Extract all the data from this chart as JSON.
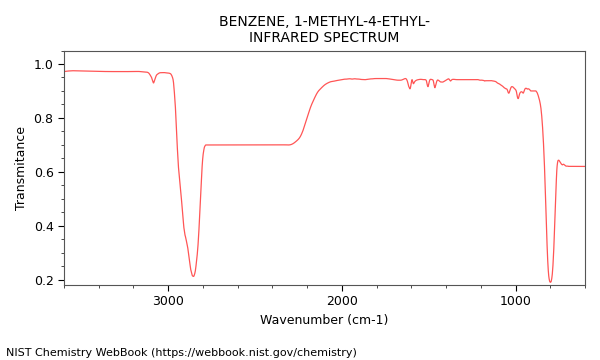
{
  "title_line1": "BENZENE, 1-METHYL-4-ETHYL-",
  "title_line2": "INFRARED SPECTRUM",
  "xlabel": "Wavenumber (cm-1)",
  "ylabel": "Transmitance",
  "footnote": "NIST Chemistry WebBook (https://webbook.nist.gov/chemistry)",
  "xmin": 600,
  "xmax": 3600,
  "ymin": 0.18,
  "ymax": 1.05,
  "line_color": "#ff5555",
  "bg_color": "#ffffff",
  "axes_bg_color": "#ffffff",
  "title_fontsize": 10,
  "axis_fontsize": 9,
  "footnote_fontsize": 8,
  "keypoints": [
    [
      3600,
      0.972
    ],
    [
      3550,
      0.975
    ],
    [
      3500,
      0.975
    ],
    [
      3450,
      0.974
    ],
    [
      3400,
      0.973
    ],
    [
      3350,
      0.972
    ],
    [
      3300,
      0.972
    ],
    [
      3250,
      0.972
    ],
    [
      3200,
      0.972
    ],
    [
      3160,
      0.972
    ],
    [
      3130,
      0.97
    ],
    [
      3110,
      0.965
    ],
    [
      3100,
      0.955
    ],
    [
      3090,
      0.94
    ],
    [
      3085,
      0.93
    ],
    [
      3080,
      0.935
    ],
    [
      3075,
      0.945
    ],
    [
      3070,
      0.955
    ],
    [
      3060,
      0.963
    ],
    [
      3050,
      0.967
    ],
    [
      3040,
      0.968
    ],
    [
      3030,
      0.968
    ],
    [
      3020,
      0.968
    ],
    [
      3010,
      0.967
    ],
    [
      3000,
      0.966
    ],
    [
      2995,
      0.966
    ],
    [
      2990,
      0.965
    ],
    [
      2985,
      0.963
    ],
    [
      2980,
      0.958
    ],
    [
      2975,
      0.95
    ],
    [
      2970,
      0.935
    ],
    [
      2965,
      0.9
    ],
    [
      2960,
      0.855
    ],
    [
      2955,
      0.8
    ],
    [
      2950,
      0.73
    ],
    [
      2945,
      0.66
    ],
    [
      2942,
      0.63
    ],
    [
      2940,
      0.61
    ],
    [
      2938,
      0.595
    ],
    [
      2936,
      0.58
    ],
    [
      2933,
      0.56
    ],
    [
      2930,
      0.54
    ],
    [
      2927,
      0.52
    ],
    [
      2924,
      0.5
    ],
    [
      2921,
      0.48
    ],
    [
      2918,
      0.46
    ],
    [
      2915,
      0.435
    ],
    [
      2912,
      0.41
    ],
    [
      2909,
      0.39
    ],
    [
      2906,
      0.38
    ],
    [
      2903,
      0.365
    ],
    [
      2900,
      0.36
    ],
    [
      2897,
      0.35
    ],
    [
      2894,
      0.34
    ],
    [
      2891,
      0.33
    ],
    [
      2888,
      0.32
    ],
    [
      2885,
      0.31
    ],
    [
      2882,
      0.295
    ],
    [
      2879,
      0.28
    ],
    [
      2876,
      0.265
    ],
    [
      2873,
      0.25
    ],
    [
      2870,
      0.237
    ],
    [
      2867,
      0.228
    ],
    [
      2864,
      0.222
    ],
    [
      2861,
      0.215
    ],
    [
      2858,
      0.213
    ],
    [
      2855,
      0.212
    ],
    [
      2852,
      0.213
    ],
    [
      2849,
      0.218
    ],
    [
      2846,
      0.225
    ],
    [
      2843,
      0.235
    ],
    [
      2840,
      0.25
    ],
    [
      2837,
      0.268
    ],
    [
      2834,
      0.285
    ],
    [
      2831,
      0.305
    ],
    [
      2828,
      0.33
    ],
    [
      2825,
      0.36
    ],
    [
      2822,
      0.395
    ],
    [
      2819,
      0.43
    ],
    [
      2816,
      0.47
    ],
    [
      2813,
      0.51
    ],
    [
      2810,
      0.55
    ],
    [
      2807,
      0.59
    ],
    [
      2804,
      0.625
    ],
    [
      2801,
      0.65
    ],
    [
      2798,
      0.668
    ],
    [
      2795,
      0.68
    ],
    [
      2792,
      0.69
    ],
    [
      2789,
      0.695
    ],
    [
      2786,
      0.698
    ],
    [
      2783,
      0.7
    ],
    [
      2780,
      0.7
    ],
    [
      2770,
      0.7
    ],
    [
      2760,
      0.7
    ],
    [
      2750,
      0.7
    ],
    [
      2740,
      0.7
    ],
    [
      2730,
      0.7
    ],
    [
      2700,
      0.7
    ],
    [
      2680,
      0.7
    ],
    [
      2660,
      0.7
    ],
    [
      2640,
      0.7
    ],
    [
      2620,
      0.7
    ],
    [
      2600,
      0.7
    ],
    [
      2580,
      0.7
    ],
    [
      2560,
      0.7
    ],
    [
      2540,
      0.7
    ],
    [
      2520,
      0.7
    ],
    [
      2500,
      0.7
    ],
    [
      2480,
      0.7
    ],
    [
      2460,
      0.7
    ],
    [
      2440,
      0.7
    ],
    [
      2420,
      0.7
    ],
    [
      2400,
      0.7
    ],
    [
      2380,
      0.7
    ],
    [
      2360,
      0.7
    ],
    [
      2340,
      0.7
    ],
    [
      2320,
      0.7
    ],
    [
      2300,
      0.7
    ],
    [
      2280,
      0.705
    ],
    [
      2260,
      0.715
    ],
    [
      2240,
      0.73
    ],
    [
      2220,
      0.76
    ],
    [
      2200,
      0.8
    ],
    [
      2180,
      0.84
    ],
    [
      2160,
      0.87
    ],
    [
      2140,
      0.895
    ],
    [
      2120,
      0.91
    ],
    [
      2100,
      0.922
    ],
    [
      2080,
      0.93
    ],
    [
      2060,
      0.935
    ],
    [
      2040,
      0.937
    ],
    [
      2020,
      0.94
    ],
    [
      2000,
      0.942
    ],
    [
      1990,
      0.943
    ],
    [
      1980,
      0.944
    ],
    [
      1970,
      0.944
    ],
    [
      1960,
      0.945
    ],
    [
      1950,
      0.945
    ],
    [
      1940,
      0.944
    ],
    [
      1930,
      0.945
    ],
    [
      1920,
      0.945
    ],
    [
      1910,
      0.944
    ],
    [
      1900,
      0.944
    ],
    [
      1890,
      0.943
    ],
    [
      1880,
      0.942
    ],
    [
      1870,
      0.942
    ],
    [
      1860,
      0.942
    ],
    [
      1850,
      0.943
    ],
    [
      1840,
      0.944
    ],
    [
      1830,
      0.945
    ],
    [
      1820,
      0.945
    ],
    [
      1810,
      0.946
    ],
    [
      1800,
      0.946
    ],
    [
      1790,
      0.946
    ],
    [
      1780,
      0.946
    ],
    [
      1770,
      0.946
    ],
    [
      1760,
      0.946
    ],
    [
      1750,
      0.946
    ],
    [
      1740,
      0.946
    ],
    [
      1730,
      0.945
    ],
    [
      1720,
      0.944
    ],
    [
      1710,
      0.943
    ],
    [
      1700,
      0.942
    ],
    [
      1690,
      0.941
    ],
    [
      1680,
      0.94
    ],
    [
      1670,
      0.94
    ],
    [
      1660,
      0.94
    ],
    [
      1650,
      0.942
    ],
    [
      1640,
      0.945
    ],
    [
      1630,
      0.945
    ],
    [
      1625,
      0.94
    ],
    [
      1620,
      0.93
    ],
    [
      1615,
      0.917
    ],
    [
      1610,
      0.91
    ],
    [
      1608,
      0.908
    ],
    [
      1606,
      0.91
    ],
    [
      1604,
      0.915
    ],
    [
      1602,
      0.92
    ],
    [
      1600,
      0.93
    ],
    [
      1598,
      0.938
    ],
    [
      1596,
      0.942
    ],
    [
      1594,
      0.94
    ],
    [
      1592,
      0.935
    ],
    [
      1590,
      0.93
    ],
    [
      1588,
      0.927
    ],
    [
      1586,
      0.928
    ],
    [
      1584,
      0.93
    ],
    [
      1582,
      0.933
    ],
    [
      1580,
      0.935
    ],
    [
      1570,
      0.94
    ],
    [
      1560,
      0.942
    ],
    [
      1550,
      0.943
    ],
    [
      1540,
      0.943
    ],
    [
      1530,
      0.942
    ],
    [
      1520,
      0.942
    ],
    [
      1515,
      0.94
    ],
    [
      1512,
      0.935
    ],
    [
      1510,
      0.928
    ],
    [
      1508,
      0.922
    ],
    [
      1506,
      0.918
    ],
    [
      1504,
      0.916
    ],
    [
      1502,
      0.918
    ],
    [
      1500,
      0.924
    ],
    [
      1498,
      0.93
    ],
    [
      1496,
      0.936
    ],
    [
      1494,
      0.94
    ],
    [
      1492,
      0.942
    ],
    [
      1490,
      0.943
    ],
    [
      1485,
      0.943
    ],
    [
      1480,
      0.942
    ],
    [
      1475,
      0.94
    ],
    [
      1472,
      0.935
    ],
    [
      1470,
      0.928
    ],
    [
      1468,
      0.92
    ],
    [
      1466,
      0.915
    ],
    [
      1464,
      0.912
    ],
    [
      1462,
      0.915
    ],
    [
      1460,
      0.92
    ],
    [
      1458,
      0.925
    ],
    [
      1456,
      0.93
    ],
    [
      1454,
      0.935
    ],
    [
      1452,
      0.938
    ],
    [
      1450,
      0.94
    ],
    [
      1445,
      0.94
    ],
    [
      1440,
      0.938
    ],
    [
      1435,
      0.935
    ],
    [
      1430,
      0.933
    ],
    [
      1425,
      0.933
    ],
    [
      1420,
      0.933
    ],
    [
      1415,
      0.934
    ],
    [
      1410,
      0.936
    ],
    [
      1405,
      0.938
    ],
    [
      1400,
      0.94
    ],
    [
      1395,
      0.942
    ],
    [
      1390,
      0.944
    ],
    [
      1385,
      0.945
    ],
    [
      1382,
      0.944
    ],
    [
      1380,
      0.942
    ],
    [
      1378,
      0.94
    ],
    [
      1376,
      0.938
    ],
    [
      1374,
      0.937
    ],
    [
      1372,
      0.938
    ],
    [
      1370,
      0.94
    ],
    [
      1368,
      0.941
    ],
    [
      1366,
      0.942
    ],
    [
      1364,
      0.943
    ],
    [
      1362,
      0.943
    ],
    [
      1360,
      0.943
    ],
    [
      1350,
      0.943
    ],
    [
      1340,
      0.942
    ],
    [
      1330,
      0.942
    ],
    [
      1320,
      0.942
    ],
    [
      1310,
      0.942
    ],
    [
      1305,
      0.942
    ],
    [
      1300,
      0.942
    ],
    [
      1295,
      0.942
    ],
    [
      1290,
      0.942
    ],
    [
      1285,
      0.942
    ],
    [
      1280,
      0.942
    ],
    [
      1275,
      0.942
    ],
    [
      1270,
      0.942
    ],
    [
      1265,
      0.942
    ],
    [
      1260,
      0.942
    ],
    [
      1255,
      0.942
    ],
    [
      1250,
      0.942
    ],
    [
      1245,
      0.942
    ],
    [
      1240,
      0.942
    ],
    [
      1235,
      0.942
    ],
    [
      1230,
      0.942
    ],
    [
      1225,
      0.942
    ],
    [
      1220,
      0.942
    ],
    [
      1215,
      0.942
    ],
    [
      1210,
      0.941
    ],
    [
      1205,
      0.94
    ],
    [
      1200,
      0.94
    ],
    [
      1195,
      0.94
    ],
    [
      1190,
      0.94
    ],
    [
      1185,
      0.939
    ],
    [
      1180,
      0.938
    ],
    [
      1178,
      0.937
    ],
    [
      1176,
      0.937
    ],
    [
      1174,
      0.938
    ],
    [
      1172,
      0.938
    ],
    [
      1170,
      0.938
    ],
    [
      1165,
      0.938
    ],
    [
      1160,
      0.938
    ],
    [
      1155,
      0.938
    ],
    [
      1150,
      0.938
    ],
    [
      1145,
      0.938
    ],
    [
      1140,
      0.938
    ],
    [
      1135,
      0.938
    ],
    [
      1130,
      0.937
    ],
    [
      1125,
      0.937
    ],
    [
      1120,
      0.936
    ],
    [
      1115,
      0.935
    ],
    [
      1110,
      0.933
    ],
    [
      1105,
      0.93
    ],
    [
      1100,
      0.928
    ],
    [
      1095,
      0.926
    ],
    [
      1090,
      0.925
    ],
    [
      1085,
      0.922
    ],
    [
      1080,
      0.92
    ],
    [
      1075,
      0.918
    ],
    [
      1070,
      0.915
    ],
    [
      1065,
      0.912
    ],
    [
      1060,
      0.91
    ],
    [
      1055,
      0.908
    ],
    [
      1050,
      0.907
    ],
    [
      1048,
      0.905
    ],
    [
      1046,
      0.902
    ],
    [
      1044,
      0.898
    ],
    [
      1042,
      0.894
    ],
    [
      1040,
      0.892
    ],
    [
      1038,
      0.892
    ],
    [
      1036,
      0.894
    ],
    [
      1034,
      0.898
    ],
    [
      1032,
      0.902
    ],
    [
      1030,
      0.906
    ],
    [
      1028,
      0.91
    ],
    [
      1026,
      0.913
    ],
    [
      1024,
      0.915
    ],
    [
      1022,
      0.916
    ],
    [
      1020,
      0.916
    ],
    [
      1015,
      0.915
    ],
    [
      1010,
      0.912
    ],
    [
      1005,
      0.908
    ],
    [
      1000,
      0.905
    ],
    [
      998,
      0.903
    ],
    [
      996,
      0.9
    ],
    [
      994,
      0.895
    ],
    [
      992,
      0.888
    ],
    [
      990,
      0.88
    ],
    [
      988,
      0.875
    ],
    [
      986,
      0.872
    ],
    [
      984,
      0.872
    ],
    [
      982,
      0.875
    ],
    [
      980,
      0.88
    ],
    [
      978,
      0.886
    ],
    [
      976,
      0.89
    ],
    [
      974,
      0.893
    ],
    [
      972,
      0.895
    ],
    [
      970,
      0.896
    ],
    [
      968,
      0.897
    ],
    [
      966,
      0.897
    ],
    [
      964,
      0.897
    ],
    [
      962,
      0.896
    ],
    [
      960,
      0.895
    ],
    [
      958,
      0.893
    ],
    [
      956,
      0.892
    ],
    [
      954,
      0.893
    ],
    [
      952,
      0.896
    ],
    [
      950,
      0.9
    ],
    [
      948,
      0.904
    ],
    [
      946,
      0.907
    ],
    [
      944,
      0.909
    ],
    [
      942,
      0.91
    ],
    [
      940,
      0.91
    ],
    [
      938,
      0.91
    ],
    [
      936,
      0.909
    ],
    [
      934,
      0.908
    ],
    [
      932,
      0.907
    ],
    [
      930,
      0.907
    ],
    [
      928,
      0.908
    ],
    [
      926,
      0.908
    ],
    [
      924,
      0.908
    ],
    [
      922,
      0.907
    ],
    [
      920,
      0.906
    ],
    [
      918,
      0.905
    ],
    [
      916,
      0.903
    ],
    [
      914,
      0.901
    ],
    [
      912,
      0.9
    ],
    [
      910,
      0.9
    ],
    [
      908,
      0.9
    ],
    [
      906,
      0.9
    ],
    [
      904,
      0.9
    ],
    [
      902,
      0.9
    ],
    [
      900,
      0.9
    ],
    [
      898,
      0.9
    ],
    [
      895,
      0.9
    ],
    [
      890,
      0.9
    ],
    [
      885,
      0.9
    ],
    [
      883,
      0.9
    ],
    [
      881,
      0.899
    ],
    [
      879,
      0.897
    ],
    [
      877,
      0.895
    ],
    [
      875,
      0.893
    ],
    [
      873,
      0.89
    ],
    [
      871,
      0.886
    ],
    [
      869,
      0.882
    ],
    [
      867,
      0.877
    ],
    [
      865,
      0.872
    ],
    [
      863,
      0.868
    ],
    [
      861,
      0.863
    ],
    [
      859,
      0.857
    ],
    [
      857,
      0.85
    ],
    [
      855,
      0.842
    ],
    [
      853,
      0.832
    ],
    [
      851,
      0.82
    ],
    [
      849,
      0.806
    ],
    [
      847,
      0.79
    ],
    [
      845,
      0.772
    ],
    [
      843,
      0.752
    ],
    [
      841,
      0.73
    ],
    [
      839,
      0.705
    ],
    [
      837,
      0.678
    ],
    [
      835,
      0.648
    ],
    [
      833,
      0.615
    ],
    [
      831,
      0.58
    ],
    [
      829,
      0.542
    ],
    [
      827,
      0.502
    ],
    [
      825,
      0.46
    ],
    [
      823,
      0.42
    ],
    [
      821,
      0.38
    ],
    [
      819,
      0.34
    ],
    [
      817,
      0.305
    ],
    [
      815,
      0.275
    ],
    [
      813,
      0.25
    ],
    [
      811,
      0.23
    ],
    [
      809,
      0.215
    ],
    [
      807,
      0.205
    ],
    [
      805,
      0.198
    ],
    [
      803,
      0.193
    ],
    [
      801,
      0.191
    ],
    [
      799,
      0.19
    ],
    [
      797,
      0.191
    ],
    [
      795,
      0.193
    ],
    [
      793,
      0.198
    ],
    [
      791,
      0.206
    ],
    [
      789,
      0.216
    ],
    [
      787,
      0.23
    ],
    [
      785,
      0.248
    ],
    [
      783,
      0.27
    ],
    [
      781,
      0.296
    ],
    [
      779,
      0.325
    ],
    [
      777,
      0.358
    ],
    [
      775,
      0.392
    ],
    [
      773,
      0.428
    ],
    [
      771,
      0.465
    ],
    [
      769,
      0.502
    ],
    [
      767,
      0.537
    ],
    [
      765,
      0.57
    ],
    [
      763,
      0.598
    ],
    [
      761,
      0.618
    ],
    [
      759,
      0.63
    ],
    [
      757,
      0.638
    ],
    [
      755,
      0.642
    ],
    [
      753,
      0.643
    ],
    [
      751,
      0.643
    ],
    [
      749,
      0.642
    ],
    [
      747,
      0.64
    ],
    [
      745,
      0.638
    ],
    [
      743,
      0.636
    ],
    [
      741,
      0.634
    ],
    [
      739,
      0.632
    ],
    [
      737,
      0.63
    ],
    [
      735,
      0.628
    ],
    [
      733,
      0.627
    ],
    [
      731,
      0.626
    ],
    [
      729,
      0.626
    ],
    [
      727,
      0.627
    ],
    [
      725,
      0.628
    ],
    [
      723,
      0.628
    ],
    [
      721,
      0.627
    ],
    [
      719,
      0.626
    ],
    [
      717,
      0.625
    ],
    [
      715,
      0.624
    ],
    [
      713,
      0.623
    ],
    [
      711,
      0.622
    ],
    [
      709,
      0.621
    ],
    [
      707,
      0.621
    ],
    [
      705,
      0.621
    ],
    [
      703,
      0.621
    ],
    [
      701,
      0.621
    ],
    [
      699,
      0.621
    ],
    [
      697,
      0.621
    ],
    [
      695,
      0.62
    ],
    [
      693,
      0.62
    ],
    [
      691,
      0.62
    ],
    [
      689,
      0.62
    ],
    [
      687,
      0.62
    ],
    [
      685,
      0.62
    ],
    [
      683,
      0.62
    ],
    [
      681,
      0.62
    ],
    [
      679,
      0.62
    ],
    [
      677,
      0.62
    ],
    [
      675,
      0.62
    ],
    [
      673,
      0.62
    ],
    [
      671,
      0.62
    ],
    [
      669,
      0.62
    ],
    [
      667,
      0.62
    ],
    [
      665,
      0.62
    ],
    [
      663,
      0.62
    ],
    [
      661,
      0.62
    ],
    [
      659,
      0.62
    ],
    [
      657,
      0.62
    ],
    [
      655,
      0.62
    ],
    [
      653,
      0.62
    ],
    [
      651,
      0.62
    ],
    [
      649,
      0.62
    ],
    [
      647,
      0.62
    ],
    [
      645,
      0.62
    ],
    [
      643,
      0.62
    ],
    [
      641,
      0.62
    ],
    [
      639,
      0.62
    ],
    [
      637,
      0.62
    ],
    [
      635,
      0.62
    ],
    [
      633,
      0.62
    ],
    [
      631,
      0.62
    ],
    [
      629,
      0.62
    ],
    [
      627,
      0.62
    ],
    [
      625,
      0.62
    ],
    [
      623,
      0.62
    ],
    [
      621,
      0.62
    ],
    [
      619,
      0.62
    ],
    [
      617,
      0.62
    ],
    [
      615,
      0.62
    ],
    [
      613,
      0.62
    ],
    [
      611,
      0.62
    ],
    [
      609,
      0.62
    ],
    [
      607,
      0.62
    ],
    [
      605,
      0.62
    ],
    [
      603,
      0.62
    ],
    [
      601,
      0.62
    ],
    [
      600,
      0.62
    ]
  ]
}
